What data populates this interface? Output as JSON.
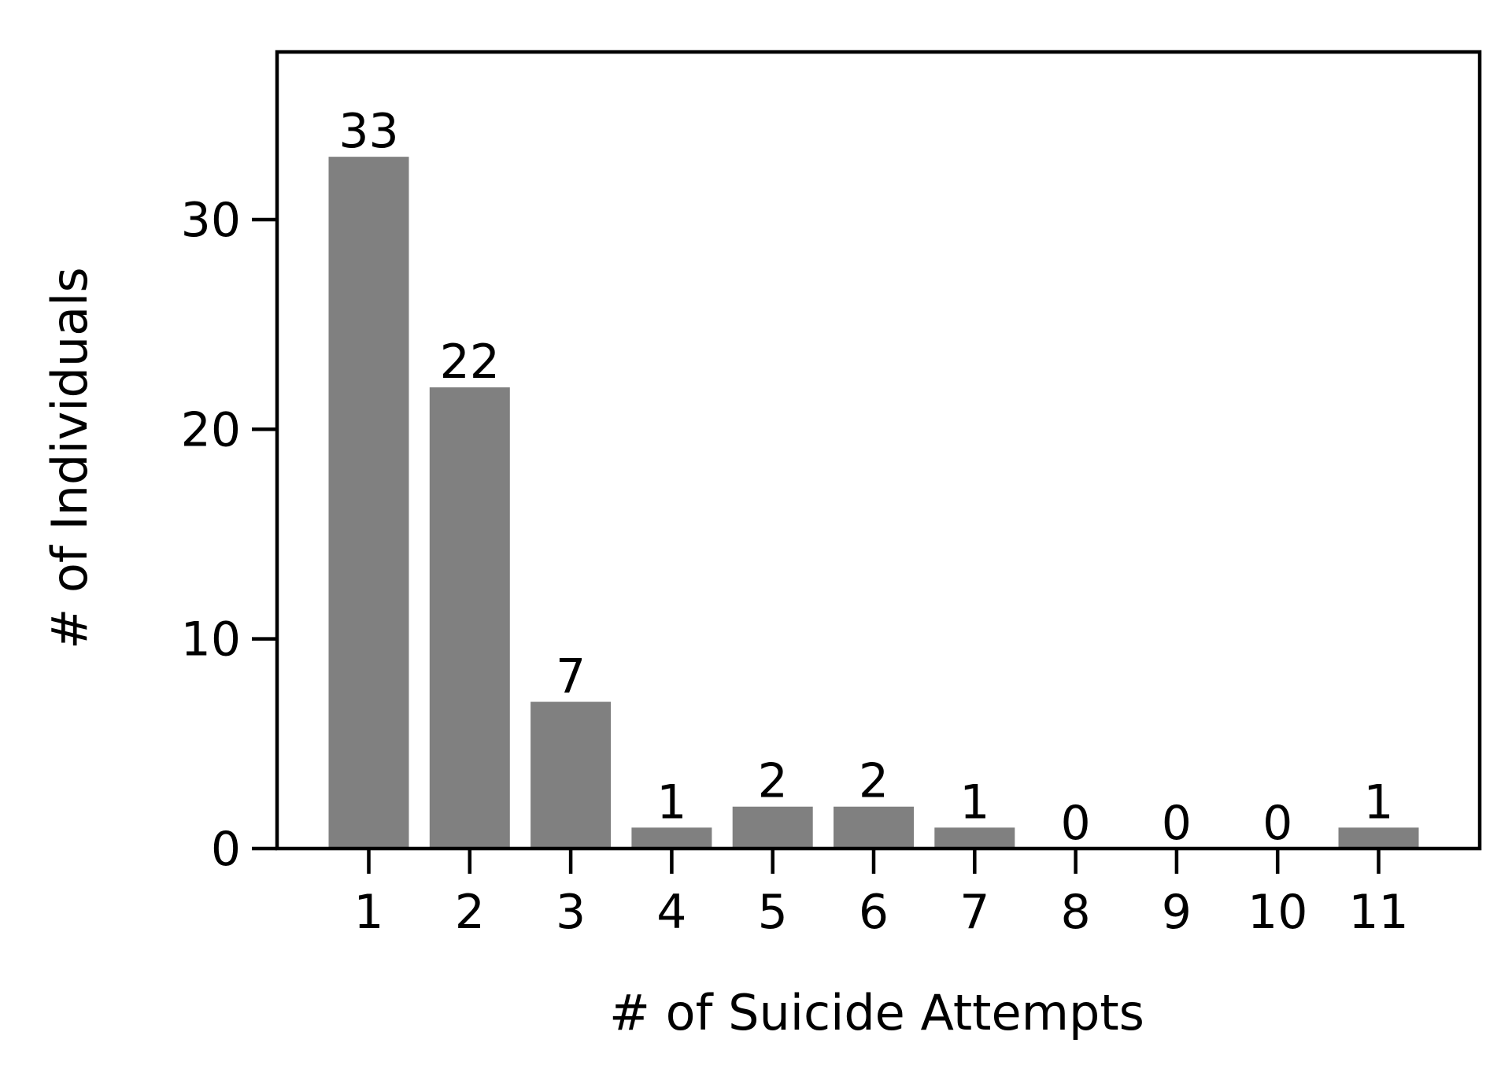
{
  "chart_data": {
    "type": "bar",
    "title": "",
    "xlabel": "# of Suicide Attempts",
    "ylabel": "# of Individuals",
    "categories": [
      "1",
      "2",
      "3",
      "4",
      "5",
      "6",
      "7",
      "8",
      "9",
      "10",
      "11"
    ],
    "values": [
      33,
      22,
      7,
      1,
      2,
      2,
      1,
      0,
      0,
      0,
      1
    ],
    "data_labels": [
      "33",
      "22",
      "7",
      "1",
      "2",
      "2",
      "1",
      "0",
      "0",
      "0",
      "1"
    ],
    "ylim": [
      0,
      38
    ],
    "yticks": [
      0,
      10,
      20,
      30
    ],
    "ytick_labels": [
      "0",
      "10",
      "20",
      "30"
    ],
    "grid": false,
    "legend": "none",
    "colors": {
      "bar": "#808080",
      "axis": "#000000",
      "background": "#ffffff"
    }
  }
}
